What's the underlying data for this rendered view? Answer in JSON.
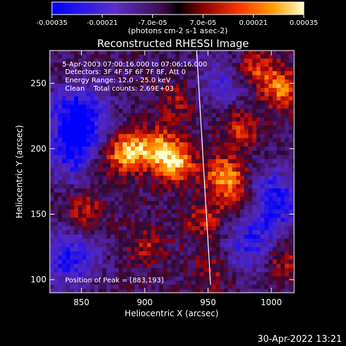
{
  "chart_data": {
    "type": "heatmap",
    "title": "Reconstructed RHESSI Image",
    "xlabel": "Heliocentric X (arcsec)",
    "ylabel": "Heliocentric Y (arcsec)",
    "xlim": [
      825,
      1018
    ],
    "ylim": [
      90,
      275
    ],
    "x_ticks": [
      850,
      900,
      950,
      1000
    ],
    "y_ticks": [
      100,
      150,
      200,
      250
    ],
    "colorbar": {
      "ticks": [
        "-0.00035",
        "-0.00021",
        "-7.0e-05",
        "7.0e-05",
        "0.00021",
        "0.00035"
      ],
      "range": [
        -0.00035,
        0.00035
      ],
      "unit_label": "(photons cm-2 s-1 asec-2)"
    },
    "annotations": [
      "5-Apr-2003 07:00:16.000 to 07:06:16.000",
      "Detectors: 3F 4F 5F 6F 7F 8F, Att 0",
      "Energy Range: 12.0 - 25.0 keV",
      "Clean    Total counts: 2.69E+03",
      "Position of Peak = [883,193]"
    ],
    "peak": {
      "x": 883,
      "y": 193
    },
    "limb_line": [
      [
        941,
        275
      ],
      [
        952,
        96
      ]
    ],
    "sources": [
      {
        "x": 884,
        "y": 196,
        "value": 0.00035
      },
      {
        "x": 923,
        "y": 188,
        "value": 0.00031
      },
      {
        "x": 962,
        "y": 178,
        "value": 0.0003
      },
      {
        "x": 908,
        "y": 200,
        "value": 0.00024
      },
      {
        "x": 1005,
        "y": 245,
        "value": 0.00025
      },
      {
        "x": 985,
        "y": 260,
        "value": 0.0002
      },
      {
        "x": 975,
        "y": 215,
        "value": 0.00018
      },
      {
        "x": 1005,
        "y": 115,
        "value": 0.0002
      },
      {
        "x": 850,
        "y": 150,
        "value": 0.00017
      },
      {
        "x": 945,
        "y": 145,
        "value": 0.00016
      },
      {
        "x": 975,
        "y": 158,
        "value": 0.00015
      },
      {
        "x": 900,
        "y": 125,
        "value": 0.00014
      },
      {
        "x": 925,
        "y": 235,
        "value": 0.00013
      },
      {
        "x": 860,
        "y": 185,
        "value": 0.00013
      },
      {
        "x": 950,
        "y": 105,
        "value": 0.00012
      }
    ],
    "min_regions": [
      {
        "x": 845,
        "y": 225,
        "value": -0.0003
      },
      {
        "x": 845,
        "y": 195,
        "value": -0.00028
      },
      {
        "x": 838,
        "y": 115,
        "value": -0.00025
      },
      {
        "x": 1000,
        "y": 160,
        "value": -0.00027
      },
      {
        "x": 985,
        "y": 125,
        "value": -0.00022
      },
      {
        "x": 960,
        "y": 250,
        "value": -0.00015
      }
    ],
    "colors": {
      "background": "#000000",
      "text": "#ffffff",
      "limb": "#ffffff"
    }
  },
  "footer": {
    "timestamp": "30-Apr-2022 13:21"
  }
}
